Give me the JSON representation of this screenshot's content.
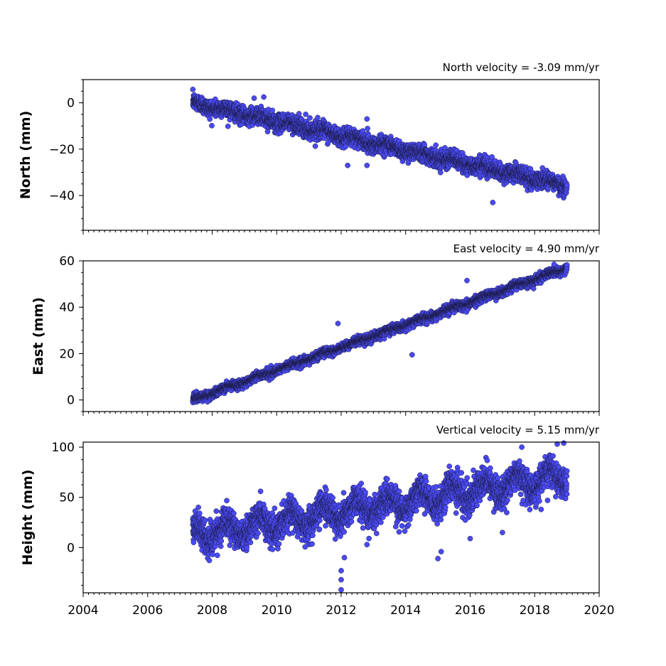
{
  "chart_data": [
    {
      "type": "scatter",
      "title": "North velocity = -3.09 mm/yr",
      "ylabel": "North (mm)",
      "xlim": [
        2004,
        2020
      ],
      "ylim": [
        -55,
        10
      ],
      "yticks": [
        0,
        -20,
        -40
      ],
      "ytick_labels": [
        "0",
        "−20",
        "−40"
      ],
      "show_xtick_labels": false,
      "marker_color": "#4a4af5",
      "series": [
        {
          "x_range": [
            2007.4,
            2019.0
          ],
          "trend": {
            "start": 0,
            "slope": -3.09
          },
          "noise_sd": 1.8,
          "seasonal_amp": 0.8,
          "outliers": [
            [
              2009.6,
              2.5
            ],
            [
              2010.9,
              -5
            ],
            [
              2012.8,
              -7
            ],
            [
              2016.7,
              -43
            ],
            [
              2012.2,
              -27
            ],
            [
              2012.8,
              -27
            ],
            [
              2009.3,
              2
            ]
          ]
        }
      ]
    },
    {
      "type": "scatter",
      "title": "East velocity = 4.90 mm/yr",
      "ylabel": "East (mm)",
      "xlim": [
        2004,
        2020
      ],
      "ylim": [
        -5,
        60
      ],
      "yticks": [
        0,
        20,
        40,
        60
      ],
      "ytick_labels": [
        "0",
        "20",
        "40",
        "60"
      ],
      "show_xtick_labels": false,
      "marker_color": "#4a4af5",
      "series": [
        {
          "x_range": [
            2007.4,
            2019.0
          ],
          "trend": {
            "start": 0,
            "slope": 4.9
          },
          "noise_sd": 0.9,
          "seasonal_amp": 0.5,
          "outliers": [
            [
              2014.2,
              19.5
            ],
            [
              2011.9,
              33
            ],
            [
              2015.9,
              51.5
            ],
            [
              2018.6,
              58.5
            ]
          ]
        }
      ]
    },
    {
      "type": "scatter",
      "title": "Vertical velocity = 5.15 mm/yr",
      "ylabel": "Height (mm)",
      "xlim": [
        2004,
        2020
      ],
      "ylim": [
        -45,
        105
      ],
      "yticks": [
        0,
        50,
        100
      ],
      "ytick_labels": [
        "0",
        "50",
        "100"
      ],
      "show_xtick_labels": true,
      "xticks": [
        2004,
        2006,
        2008,
        2010,
        2012,
        2014,
        2016,
        2018,
        2020
      ],
      "xtick_labels": [
        "2004",
        "2006",
        "2008",
        "2010",
        "2012",
        "2014",
        "2016",
        "2018",
        "2020"
      ],
      "marker_color": "#4a4af5",
      "series": [
        {
          "x_range": [
            2007.4,
            2019.0
          ],
          "trend": {
            "start": 12,
            "slope": 5.15
          },
          "noise_sd": 7.5,
          "seasonal_amp": 9,
          "outliers": [
            [
              2012.0,
              -42
            ],
            [
              2012.0,
              -32
            ],
            [
              2012.0,
              -23
            ],
            [
              2012.1,
              -10
            ],
            [
              2015.0,
              -11
            ],
            [
              2015.1,
              -4
            ],
            [
              2009.5,
              56
            ],
            [
              2012.8,
              3
            ],
            [
              2016.0,
              9
            ],
            [
              2016.1,
              77
            ],
            [
              2017.6,
              100
            ],
            [
              2018.7,
              103
            ],
            [
              2018.9,
              104
            ],
            [
              2017.0,
              15
            ],
            [
              2018.4,
              47
            ],
            [
              2018.2,
              38
            ]
          ]
        }
      ]
    }
  ]
}
